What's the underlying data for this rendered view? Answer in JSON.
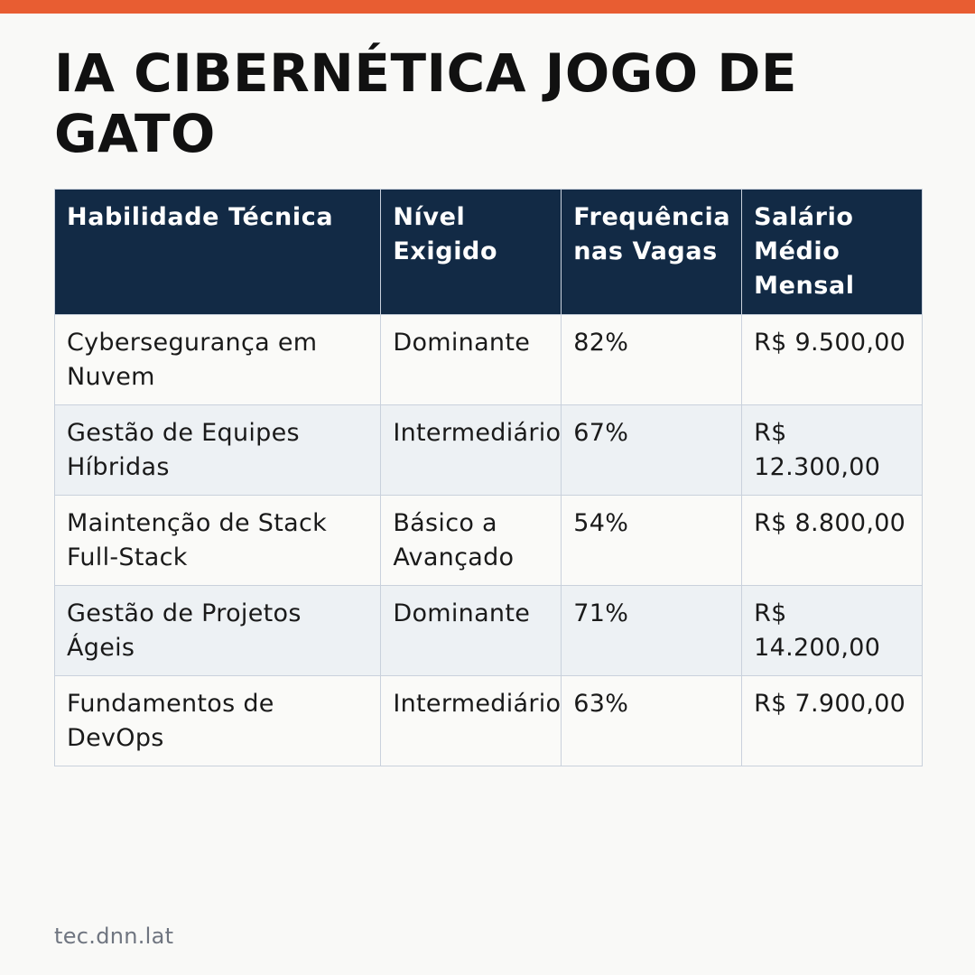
{
  "colors": {
    "accent_bar": "#e85d32",
    "header_bg": "#122a45",
    "row_alt_bg": "#edf1f4",
    "page_bg": "#f9f9f7"
  },
  "title": "IA CIBERNÉTICA JOGO DE GATO",
  "table": {
    "headers": [
      "Habilidade Técnica",
      "Nível Exigido",
      "Frequência nas Vagas",
      "Salário Médio Mensal"
    ],
    "rows": [
      [
        "Cybersegurança em Nuvem",
        "Dominante",
        "82%",
        "R$ 9.500,00"
      ],
      [
        "Gestão de Equipes Híbridas",
        "Intermediário",
        "67%",
        "R$ 12.300,00"
      ],
      [
        "Maintenção de Stack Full-Stack",
        "Básico a Avançado",
        "54%",
        "R$ 8.800,00"
      ],
      [
        "Gestão de Projetos Ágeis",
        "Dominante",
        "71%",
        "R$ 14.200,00"
      ],
      [
        "Fundamentos de DevOps",
        "Intermediário",
        "63%",
        "R$ 7.900,00"
      ]
    ]
  },
  "footer": "tec.dnn.lat"
}
